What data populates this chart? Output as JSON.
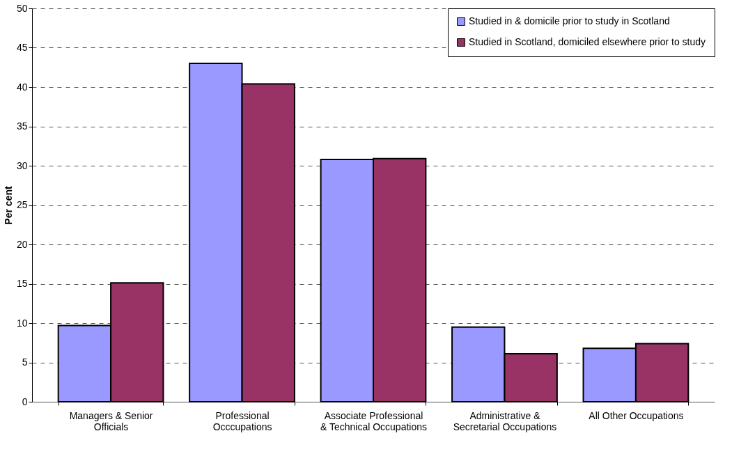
{
  "chart_data": {
    "type": "bar",
    "ylabel": "Per cent",
    "categories": [
      "Managers & Senior Officials",
      "Professional Occcupations",
      "Associate Professional & Technical Occupations",
      "Administrative & Secretarial Occupations",
      "All Other Occupations"
    ],
    "series": [
      {
        "name": "Studied in & domicile prior to study in Scotland",
        "color": "#9999ff",
        "values": [
          9.7,
          43.0,
          30.8,
          9.5,
          6.8
        ]
      },
      {
        "name": "Studied in Scotland, domiciled elsewhere prior to study",
        "color": "#993366",
        "values": [
          15.1,
          40.4,
          30.9,
          6.1,
          7.4
        ]
      }
    ],
    "ylim": [
      0,
      50
    ],
    "yticks": [
      0,
      5,
      10,
      15,
      20,
      25,
      30,
      35,
      40,
      45,
      50
    ],
    "grid": "y",
    "legend": "top right"
  }
}
